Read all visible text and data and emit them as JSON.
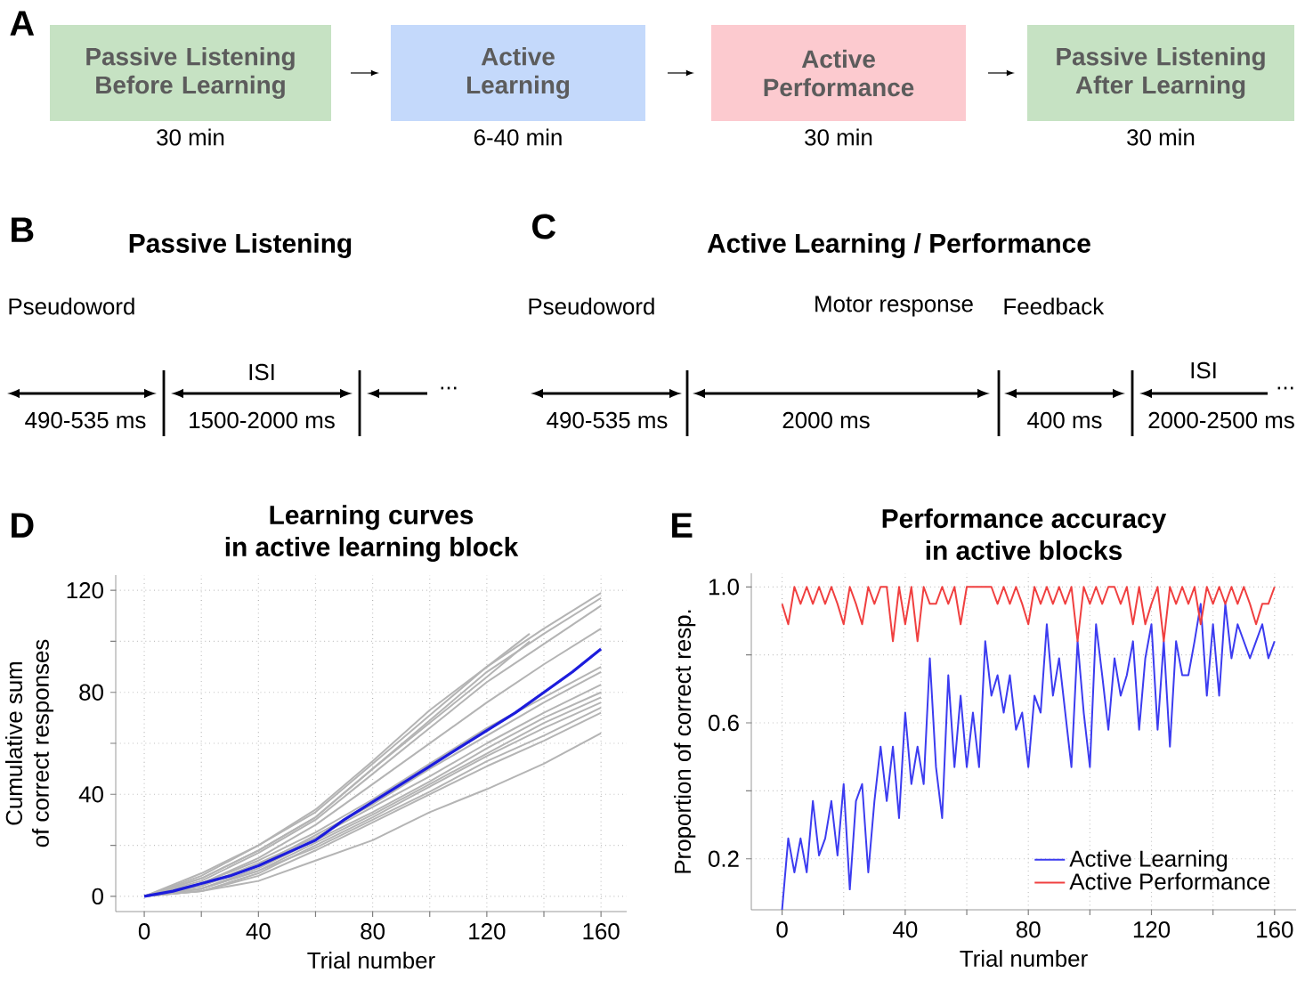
{
  "chart_data": [
    {
      "type": "other",
      "categories": [
        "Passive Listening Before Learning",
        "Active Learning",
        "Active Performance",
        "Passive Listening After Learning"
      ],
      "colors": [
        "#c6e2c3",
        "#c4d9fb",
        "#fccacf",
        "#c6e2c3"
      ],
      "annotations": [
        "A",
        "30 min",
        "6-40 min",
        "30 min",
        "30 min"
      ]
    },
    {
      "type": "other",
      "title": "Passive Listening",
      "annotations": [
        "B",
        "Pseudoword",
        "490-535 ms",
        "ISI",
        "1500-2000 ms",
        "..."
      ]
    },
    {
      "type": "other",
      "title": "Active Learning / Performance",
      "annotations": [
        "C",
        "Pseudoword",
        "Motor response",
        "Feedback",
        "490-535 ms",
        "2000 ms",
        "400 ms",
        "ISI",
        "2000-2500 ms",
        "..."
      ]
    },
    {
      "type": "line",
      "title": "Learning curves in active learning block",
      "xlabel": "Trial number",
      "ylabel": "Cumulative sum of correct responses",
      "annotations": [
        "D"
      ],
      "xlim": [
        -10,
        169
      ],
      "ylim": [
        -6,
        126
      ],
      "xticks": [
        0,
        {
          "value": 20,
          "label": null
        },
        40,
        {
          "value": 60,
          "label": null
        },
        80,
        {
          "value": 100,
          "label": null
        },
        120,
        {
          "value": 140,
          "label": null
        },
        160
      ],
      "yticks": [
        0,
        {
          "value": 20,
          "label": null
        },
        40,
        {
          "value": 60,
          "label": null
        },
        80,
        {
          "value": 100,
          "label": null
        },
        120
      ],
      "grid": true,
      "series": [
        {
          "color": "#b4b4b4",
          "x": [
            0,
            20,
            40,
            60,
            80,
            100,
            120,
            140,
            160
          ],
          "values": [
            0,
            8,
            20,
            33,
            52,
            71,
            90,
            105,
            119
          ]
        },
        {
          "color": "#b4b4b4",
          "x": [
            0,
            20,
            40,
            60,
            80,
            100,
            120,
            140,
            160
          ],
          "values": [
            0,
            7,
            18,
            31,
            50,
            69,
            88,
            103,
            117
          ]
        },
        {
          "color": "#b4b4b4",
          "x": [
            0,
            20,
            40,
            60,
            80,
            100,
            120,
            140,
            160
          ],
          "values": [
            0,
            6,
            17,
            30,
            48,
            66,
            84,
            99,
            114
          ]
        },
        {
          "color": "#b4b4b4",
          "x": [
            0,
            20,
            40,
            60,
            80,
            100,
            120,
            140,
            160
          ],
          "values": [
            0,
            5,
            15,
            28,
            44,
            60,
            76,
            91,
            105
          ]
        },
        {
          "color": "#b4b4b4",
          "x": [
            0,
            20,
            40,
            60,
            80,
            100,
            120,
            135
          ],
          "values": [
            0,
            9,
            20,
            34,
            53,
            73,
            90,
            103
          ]
        },
        {
          "color": "#b4b4b4",
          "x": [
            0,
            20,
            40,
            60,
            80,
            100,
            120,
            135
          ],
          "values": [
            0,
            7,
            18,
            31,
            50,
            68,
            86,
            100
          ]
        },
        {
          "color": "#b4b4b4",
          "x": [
            0,
            20,
            40,
            60,
            80,
            100,
            120,
            140,
            160
          ],
          "values": [
            0,
            5,
            14,
            25,
            38,
            52,
            66,
            78,
            90
          ]
        },
        {
          "color": "#b4b4b4",
          "x": [
            0,
            20,
            40,
            60,
            80,
            100,
            120,
            140,
            160
          ],
          "values": [
            0,
            4,
            12,
            24,
            36,
            50,
            63,
            76,
            88
          ]
        },
        {
          "color": "#b4b4b4",
          "x": [
            0,
            20,
            40,
            60,
            80,
            100,
            120,
            140,
            160
          ],
          "values": [
            0,
            4,
            13,
            23,
            35,
            47,
            60,
            72,
            83
          ]
        },
        {
          "color": "#b4b4b4",
          "x": [
            0,
            20,
            40,
            60,
            80,
            100,
            120,
            140,
            160
          ],
          "values": [
            0,
            3,
            11,
            22,
            33,
            45,
            58,
            70,
            80
          ]
        },
        {
          "color": "#b4b4b4",
          "x": [
            0,
            20,
            40,
            60,
            80,
            100,
            120,
            140,
            160
          ],
          "values": [
            0,
            3,
            10,
            21,
            32,
            44,
            56,
            68,
            78
          ]
        },
        {
          "color": "#b4b4b4",
          "x": [
            0,
            20,
            40,
            60,
            80,
            100,
            120,
            140,
            160
          ],
          "values": [
            0,
            2,
            9,
            20,
            31,
            43,
            55,
            66,
            76
          ]
        },
        {
          "color": "#b4b4b4",
          "x": [
            0,
            20,
            40,
            60,
            80,
            100,
            120,
            140,
            160
          ],
          "values": [
            0,
            3,
            10,
            19,
            30,
            41,
            53,
            63,
            74
          ]
        },
        {
          "color": "#b4b4b4",
          "x": [
            0,
            20,
            40,
            60,
            80,
            100,
            120,
            140,
            160
          ],
          "values": [
            0,
            2,
            8,
            18,
            29,
            40,
            51,
            61,
            72
          ]
        },
        {
          "color": "#b4b4b4",
          "x": [
            0,
            20,
            40,
            60,
            80,
            100,
            120,
            140,
            160
          ],
          "values": [
            0,
            2,
            6,
            14,
            22,
            33,
            42,
            52,
            64
          ]
        },
        {
          "color": "#1c1cdc",
          "x": [
            0,
            10,
            20,
            30,
            40,
            50,
            60,
            70,
            80,
            90,
            100,
            110,
            120,
            130,
            140,
            150,
            160
          ],
          "values": [
            0,
            2,
            5,
            8,
            12,
            17,
            22,
            30,
            37,
            44,
            51,
            58,
            65,
            72,
            80,
            88,
            97
          ]
        }
      ]
    },
    {
      "type": "line",
      "title": "Performance accuracy in active blocks",
      "xlabel": "Trial number",
      "ylabel": "Proportion of correct resp.",
      "annotations": [
        "E"
      ],
      "xlim": [
        -10,
        167
      ],
      "ylim": [
        0.05,
        1.04
      ],
      "xticks": [
        0,
        {
          "value": 20,
          "label": null
        },
        40,
        {
          "value": 60,
          "label": null
        },
        80,
        {
          "value": 100,
          "label": null
        },
        120,
        {
          "value": 140,
          "label": null
        },
        160
      ],
      "yticks": [
        0.2,
        {
          "value": 0.4,
          "label": null
        },
        0.6,
        {
          "value": 0.8,
          "label": null
        },
        {
          "value": 1,
          "label": "1.0"
        }
      ],
      "grid": true,
      "legend": "bottom right",
      "x": [
        0,
        2,
        4,
        6,
        8,
        10,
        12,
        14,
        16,
        18,
        20,
        22,
        24,
        26,
        28,
        30,
        32,
        34,
        36,
        38,
        40,
        42,
        44,
        46,
        48,
        50,
        52,
        54,
        56,
        58,
        60,
        62,
        64,
        66,
        68,
        70,
        72,
        74,
        76,
        78,
        80,
        82,
        84,
        86,
        88,
        90,
        92,
        94,
        96,
        98,
        100,
        102,
        104,
        106,
        108,
        110,
        112,
        114,
        116,
        118,
        120,
        122,
        124,
        126,
        128,
        130,
        132,
        134,
        136,
        138,
        140,
        142,
        144,
        146,
        148,
        150,
        152,
        154,
        156,
        158,
        160
      ],
      "series": [
        {
          "name": "Active Learning",
          "color": "#3c3cf0",
          "values": [
            0.05,
            0.26,
            0.16,
            0.26,
            0.16,
            0.37,
            0.21,
            0.26,
            0.37,
            0.21,
            0.42,
            0.11,
            0.37,
            0.42,
            0.16,
            0.37,
            0.53,
            0.37,
            0.53,
            0.32,
            0.63,
            0.42,
            0.53,
            0.42,
            0.79,
            0.47,
            0.32,
            0.74,
            0.47,
            0.68,
            0.47,
            0.63,
            0.47,
            0.84,
            0.68,
            0.74,
            0.63,
            0.74,
            0.58,
            0.63,
            0.47,
            0.68,
            0.63,
            0.89,
            0.68,
            0.79,
            0.63,
            0.47,
            0.84,
            0.63,
            0.47,
            0.89,
            0.74,
            0.58,
            0.79,
            0.68,
            0.74,
            0.84,
            0.58,
            0.79,
            0.89,
            0.58,
            0.84,
            0.53,
            0.84,
            0.74,
            0.74,
            0.84,
            0.95,
            0.68,
            0.89,
            0.68,
            0.95,
            0.79,
            0.89,
            0.84,
            0.79,
            0.84,
            0.89,
            0.79,
            0.84
          ]
        },
        {
          "name": "Active Performance",
          "color": "#f04040",
          "values": [
            0.95,
            0.89,
            1.0,
            0.95,
            1.0,
            0.95,
            1.0,
            0.95,
            1.0,
            0.95,
            0.89,
            1.0,
            0.95,
            0.89,
            1.0,
            0.95,
            1.0,
            1.0,
            0.84,
            1.0,
            0.89,
            1.0,
            0.84,
            1.0,
            0.95,
            0.95,
            1.0,
            0.95,
            1.0,
            0.89,
            1.0,
            1.0,
            1.0,
            1.0,
            1.0,
            0.95,
            1.0,
            0.95,
            1.0,
            0.95,
            0.89,
            1.0,
            0.95,
            1.0,
            0.95,
            1.0,
            0.95,
            1.0,
            0.84,
            1.0,
            0.95,
            1.0,
            0.95,
            1.0,
            1.0,
            0.95,
            1.0,
            0.89,
            1.0,
            0.89,
            0.95,
            1.0,
            0.84,
            1.0,
            0.95,
            1.0,
            0.95,
            1.0,
            0.89,
            1.0,
            0.95,
            1.0,
            0.95,
            1.0,
            0.95,
            1.0,
            0.95,
            0.89,
            0.95,
            0.95,
            1.0
          ]
        }
      ]
    }
  ]
}
